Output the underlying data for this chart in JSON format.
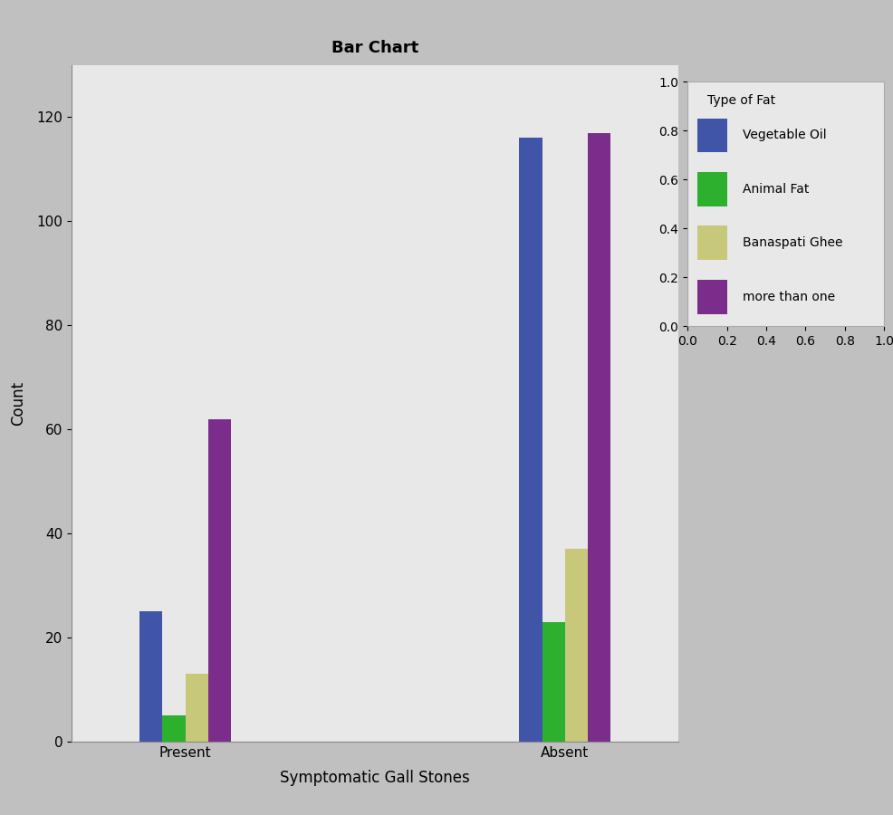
{
  "title": "Bar Chart",
  "xlabel": "Symptomatic Gall Stones",
  "ylabel": "Count",
  "legend_title": "Type of Fat",
  "categories": [
    "Present",
    "Absent"
  ],
  "series": [
    {
      "label": "Vegetable Oil",
      "color": "#4155a8",
      "values": [
        25,
        116
      ]
    },
    {
      "label": "Animal Fat",
      "color": "#2db02d",
      "values": [
        5,
        23
      ]
    },
    {
      "label": "Banaspati Ghee",
      "color": "#c8c87a",
      "values": [
        13,
        37
      ]
    },
    {
      "label": "more than one",
      "color": "#7b2d8b",
      "values": [
        62,
        117
      ]
    }
  ],
  "ylim": [
    0,
    130
  ],
  "yticks": [
    0,
    20,
    40,
    60,
    80,
    100,
    120
  ],
  "plot_bg_color": "#e8e8e8",
  "outer_bg_color": "#c0c0c0",
  "title_fontsize": 13,
  "axis_label_fontsize": 12,
  "tick_fontsize": 11,
  "legend_fontsize": 10,
  "bar_width": 0.12,
  "group_positions": [
    1.0,
    3.0
  ]
}
